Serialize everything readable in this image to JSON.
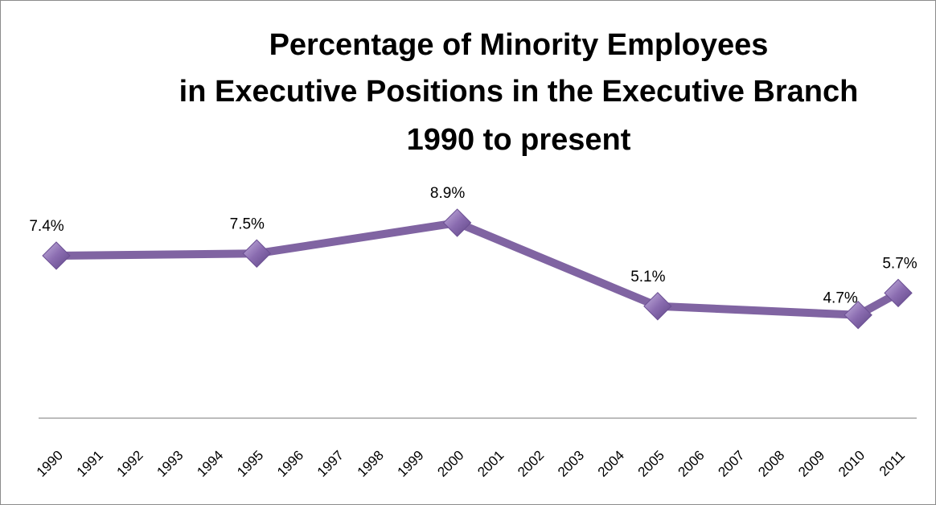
{
  "chart_data": {
    "type": "line",
    "title": [
      "Percentage of Minority Employees",
      "in Executive Positions in the Executive Branch",
      "1990 to present"
    ],
    "x": [
      1990,
      1995,
      2000,
      2005,
      2010,
      2011
    ],
    "xlim": [
      1990,
      2011
    ],
    "xticks": [
      1990,
      1991,
      1992,
      1993,
      1994,
      1995,
      1996,
      1997,
      1998,
      1999,
      2000,
      2001,
      2002,
      2003,
      2004,
      2005,
      2006,
      2007,
      2008,
      2009,
      2010,
      2011
    ],
    "series": [
      {
        "color": "#8064a2",
        "values": [
          7.4,
          7.5,
          8.9,
          5.1,
          4.7,
          5.7
        ],
        "value_labels": [
          "7.4%",
          "7.5%",
          "8.9%",
          "5.1%",
          "4.7%",
          "5.7%"
        ]
      }
    ],
    "ylim": [
      0,
      10
    ]
  }
}
